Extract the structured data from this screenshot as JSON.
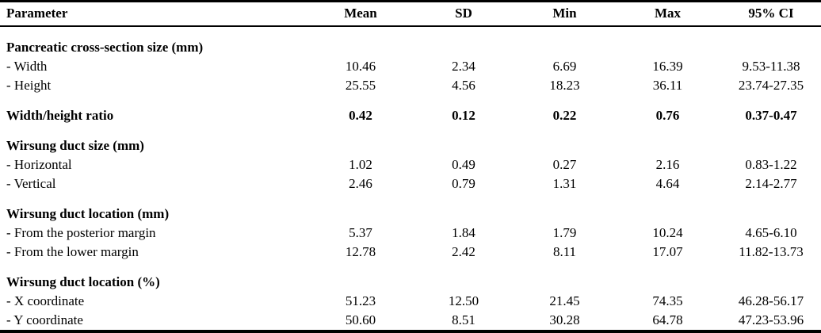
{
  "table": {
    "columns": [
      "Parameter",
      "Mean",
      "SD",
      "Min",
      "Max",
      "95% CI"
    ],
    "sections": [
      {
        "title": "Pancreatic cross-section size (mm)",
        "values": null,
        "rows": [
          {
            "label": "- Width",
            "mean": "10.46",
            "sd": "2.34",
            "min": "6.69",
            "max": "16.39",
            "ci": "9.53-11.38"
          },
          {
            "label": "- Height",
            "mean": "25.55",
            "sd": "4.56",
            "min": "18.23",
            "max": "36.11",
            "ci": "23.74-27.35"
          }
        ]
      },
      {
        "title": "Width/height ratio",
        "values": {
          "mean": "0.42",
          "sd": "0.12",
          "min": "0.22",
          "max": "0.76",
          "ci": "0.37-0.47"
        },
        "rows": []
      },
      {
        "title": "Wirsung duct size (mm)",
        "values": null,
        "rows": [
          {
            "label": "- Horizontal",
            "mean": "1.02",
            "sd": "0.49",
            "min": "0.27",
            "max": "2.16",
            "ci": "0.83-1.22"
          },
          {
            "label": "- Vertical",
            "mean": "2.46",
            "sd": "0.79",
            "min": "1.31",
            "max": "4.64",
            "ci": "2.14-2.77"
          }
        ]
      },
      {
        "title": "Wirsung duct location (mm)",
        "values": null,
        "rows": [
          {
            "label": "- From the posterior margin",
            "mean": "5.37",
            "sd": "1.84",
            "min": "1.79",
            "max": "10.24",
            "ci": "4.65-6.10"
          },
          {
            "label": "- From the lower margin",
            "mean": "12.78",
            "sd": "2.42",
            "min": "8.11",
            "max": "17.07",
            "ci": "11.82-13.73"
          }
        ]
      },
      {
        "title": "Wirsung duct location (%)",
        "values": null,
        "rows": [
          {
            "label": "- X coordinate",
            "mean": "51.23",
            "sd": "12.50",
            "min": "21.45",
            "max": "74.35",
            "ci": "46.28-56.17"
          },
          {
            "label": "- Y coordinate",
            "mean": "50.60",
            "sd": "8.51",
            "min": "30.28",
            "max": "64.78",
            "ci": "47.23-53.96"
          }
        ]
      }
    ]
  }
}
